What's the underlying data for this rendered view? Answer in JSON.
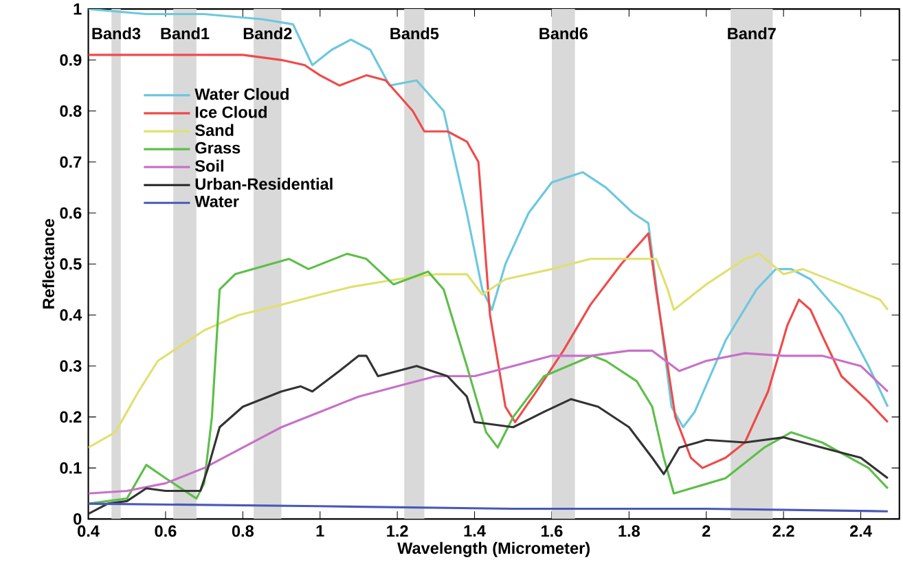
{
  "chart_data": {
    "type": "line",
    "xlabel": "Wavelength (Micrometer)",
    "ylabel": "Reflectance",
    "xlim": [
      0.4,
      2.5
    ],
    "ylim": [
      0,
      1
    ],
    "xticks": [
      0.4,
      0.6,
      0.8,
      1,
      1.2,
      1.4,
      1.6,
      1.8,
      2,
      2.2,
      2.4
    ],
    "yticks": [
      0,
      0.1,
      0.2,
      0.3,
      0.4,
      0.5,
      0.6,
      0.7,
      0.8,
      0.9,
      1
    ],
    "grid": false,
    "legend": "top left",
    "marker": "none",
    "line_style": "solid",
    "bands": [
      {
        "axis": "x",
        "from": 0.46,
        "to": 0.484,
        "label": "Band3",
        "color": "#d9d9d9"
      },
      {
        "axis": "x",
        "from": 0.62,
        "to": 0.68,
        "label": "Band1",
        "color": "#d9d9d9"
      },
      {
        "axis": "x",
        "from": 0.828,
        "to": 0.9,
        "label": "Band2",
        "color": "#d9d9d9"
      },
      {
        "axis": "x",
        "from": 1.218,
        "to": 1.27,
        "label": "Band5",
        "color": "#d9d9d9"
      },
      {
        "axis": "x",
        "from": 1.6,
        "to": 1.66,
        "label": "Band6",
        "color": "#d9d9d9"
      },
      {
        "axis": "x",
        "from": 2.063,
        "to": 2.172,
        "label": "Band7",
        "color": "#d9d9d9"
      }
    ],
    "series": [
      {
        "name": "Water Cloud",
        "color": "#6cc8de",
        "x": [
          0.4,
          0.55,
          0.7,
          0.85,
          0.93,
          0.98,
          1.03,
          1.08,
          1.13,
          1.18,
          1.25,
          1.32,
          1.38,
          1.42,
          1.445,
          1.48,
          1.54,
          1.6,
          1.68,
          1.74,
          1.81,
          1.85,
          1.91,
          1.94,
          1.97,
          2.05,
          2.13,
          2.18,
          2.22,
          2.27,
          2.35,
          2.42,
          2.47
        ],
        "values": [
          1.0,
          0.99,
          0.99,
          0.98,
          0.97,
          0.89,
          0.92,
          0.94,
          0.92,
          0.85,
          0.86,
          0.8,
          0.6,
          0.45,
          0.41,
          0.5,
          0.6,
          0.66,
          0.68,
          0.65,
          0.6,
          0.58,
          0.22,
          0.18,
          0.21,
          0.35,
          0.45,
          0.49,
          0.49,
          0.47,
          0.4,
          0.3,
          0.22
        ]
      },
      {
        "name": "Ice Cloud",
        "color": "#f04a4a",
        "x": [
          0.4,
          0.6,
          0.8,
          0.9,
          0.96,
          1.0,
          1.05,
          1.12,
          1.17,
          1.24,
          1.27,
          1.33,
          1.38,
          1.41,
          1.44,
          1.48,
          1.505,
          1.56,
          1.63,
          1.7,
          1.78,
          1.85,
          1.87,
          1.92,
          1.96,
          1.99,
          2.05,
          2.1,
          2.16,
          2.21,
          2.24,
          2.27,
          2.3,
          2.35,
          2.42,
          2.47
        ],
        "values": [
          0.91,
          0.91,
          0.91,
          0.9,
          0.89,
          0.87,
          0.85,
          0.87,
          0.86,
          0.8,
          0.76,
          0.76,
          0.74,
          0.7,
          0.4,
          0.22,
          0.19,
          0.25,
          0.33,
          0.42,
          0.5,
          0.56,
          0.45,
          0.2,
          0.12,
          0.1,
          0.12,
          0.15,
          0.25,
          0.38,
          0.43,
          0.41,
          0.36,
          0.28,
          0.23,
          0.19
        ]
      },
      {
        "name": "Sand",
        "color": "#e0e070",
        "x": [
          0.4,
          0.47,
          0.53,
          0.58,
          0.62,
          0.7,
          0.79,
          0.9,
          1.0,
          1.08,
          1.2,
          1.3,
          1.38,
          1.42,
          1.48,
          1.6,
          1.7,
          1.87,
          1.9,
          1.916,
          2.0,
          2.1,
          2.137,
          2.2,
          2.25,
          2.35,
          2.45,
          2.47
        ],
        "values": [
          0.14,
          0.17,
          0.25,
          0.31,
          0.33,
          0.37,
          0.4,
          0.42,
          0.44,
          0.455,
          0.47,
          0.48,
          0.48,
          0.44,
          0.47,
          0.49,
          0.51,
          0.51,
          0.45,
          0.41,
          0.46,
          0.51,
          0.52,
          0.48,
          0.49,
          0.46,
          0.43,
          0.41
        ]
      },
      {
        "name": "Grass",
        "color": "#5cbf48",
        "x": [
          0.4,
          0.5,
          0.55,
          0.6,
          0.68,
          0.7,
          0.72,
          0.74,
          0.78,
          0.92,
          0.97,
          1.07,
          1.12,
          1.19,
          1.28,
          1.32,
          1.38,
          1.43,
          1.46,
          1.5,
          1.58,
          1.705,
          1.74,
          1.82,
          1.86,
          1.89,
          1.916,
          2.05,
          2.15,
          2.22,
          2.3,
          2.42,
          2.47
        ],
        "values": [
          0.03,
          0.04,
          0.106,
          0.08,
          0.04,
          0.07,
          0.2,
          0.45,
          0.48,
          0.51,
          0.49,
          0.52,
          0.51,
          0.46,
          0.485,
          0.45,
          0.3,
          0.17,
          0.14,
          0.2,
          0.28,
          0.32,
          0.31,
          0.27,
          0.22,
          0.12,
          0.05,
          0.08,
          0.14,
          0.17,
          0.15,
          0.1,
          0.06
        ]
      },
      {
        "name": "Soil",
        "color": "#c870c8",
        "x": [
          0.4,
          0.5,
          0.6,
          0.7,
          0.8,
          0.9,
          1.0,
          1.1,
          1.2,
          1.3,
          1.4,
          1.5,
          1.6,
          1.7,
          1.8,
          1.86,
          1.93,
          2.0,
          2.1,
          2.2,
          2.3,
          2.4,
          2.47
        ],
        "values": [
          0.05,
          0.055,
          0.07,
          0.1,
          0.14,
          0.18,
          0.21,
          0.24,
          0.26,
          0.28,
          0.28,
          0.3,
          0.32,
          0.32,
          0.33,
          0.33,
          0.29,
          0.31,
          0.325,
          0.32,
          0.32,
          0.3,
          0.25
        ]
      },
      {
        "name": "Urban-Residential",
        "color": "#333333",
        "x": [
          0.4,
          0.45,
          0.5,
          0.55,
          0.6,
          0.69,
          0.71,
          0.74,
          0.8,
          0.9,
          0.95,
          0.98,
          1.05,
          1.1,
          1.12,
          1.15,
          1.25,
          1.33,
          1.38,
          1.4,
          1.5,
          1.58,
          1.65,
          1.72,
          1.8,
          1.86,
          1.89,
          1.93,
          2.0,
          2.1,
          2.2,
          2.3,
          2.4,
          2.47
        ],
        "values": [
          0.01,
          0.03,
          0.035,
          0.06,
          0.055,
          0.055,
          0.1,
          0.18,
          0.22,
          0.25,
          0.26,
          0.25,
          0.29,
          0.32,
          0.32,
          0.28,
          0.3,
          0.28,
          0.24,
          0.19,
          0.18,
          0.21,
          0.235,
          0.22,
          0.18,
          0.12,
          0.088,
          0.14,
          0.155,
          0.15,
          0.16,
          0.14,
          0.12,
          0.08
        ]
      },
      {
        "name": "Water",
        "color": "#4a58b8",
        "x": [
          0.4,
          1.0,
          1.5,
          2.0,
          2.47
        ],
        "values": [
          0.03,
          0.025,
          0.02,
          0.02,
          0.015
        ]
      }
    ]
  }
}
